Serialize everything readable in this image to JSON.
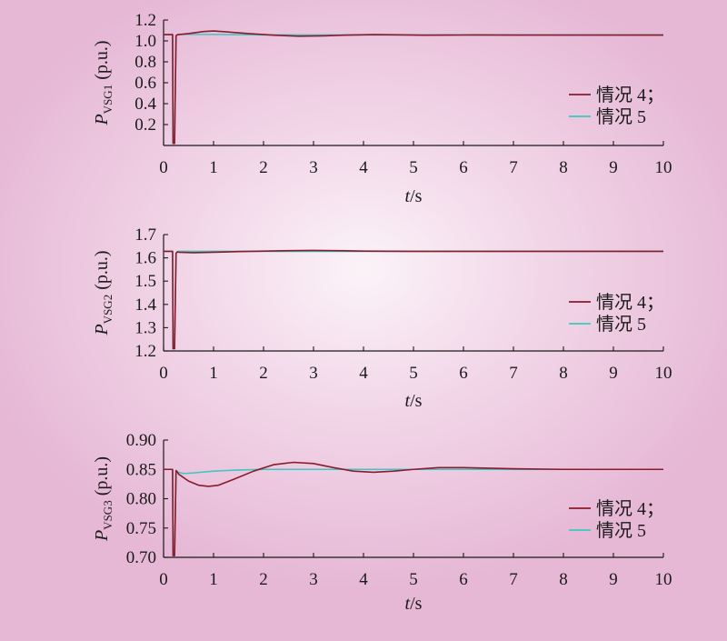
{
  "colors": {
    "case4": "#8b1a2b",
    "case5": "#3cc8c0",
    "axis": "#1a1a1a"
  },
  "chart_data": [
    {
      "type": "line",
      "xlabel": "t/s",
      "ylabel": "P_VSG1 (p.u.)",
      "ylabel_main": "P",
      "ylabel_sub": "VSG1",
      "ylabel_unit": " (p.u.)",
      "xlabel_italic": "t",
      "xlabel_unit": "/s",
      "xlim": [
        0,
        10
      ],
      "ylim": [
        0.0,
        1.2
      ],
      "xticks": [
        0,
        1,
        2,
        3,
        4,
        5,
        6,
        7,
        8,
        9,
        10
      ],
      "yticks": [
        0.2,
        0.4,
        0.6,
        0.8,
        1.0,
        1.2
      ],
      "ytick_labels": [
        "0.2",
        "0.4",
        "0.6",
        "0.8",
        "1.0",
        "1.2"
      ],
      "legend_position": "right",
      "series": [
        {
          "name": "情况 4；",
          "x": [
            0,
            0.18,
            0.19,
            0.22,
            0.25,
            0.28,
            0.3,
            0.5,
            0.8,
            1.0,
            1.3,
            1.7,
            2.2,
            2.7,
            3.2,
            3.7,
            4.2,
            4.7,
            5.2,
            5.7,
            6.2,
            7,
            8,
            9,
            10
          ],
          "y": [
            1.06,
            1.06,
            0.02,
            0.02,
            1.05,
            1.06,
            1.06,
            1.07,
            1.09,
            1.095,
            1.085,
            1.07,
            1.055,
            1.045,
            1.048,
            1.056,
            1.06,
            1.058,
            1.055,
            1.056,
            1.057,
            1.056,
            1.056,
            1.056,
            1.056
          ]
        },
        {
          "name": "情况 5",
          "x": [
            0,
            0.18,
            0.19,
            0.22,
            0.25,
            0.28,
            0.3,
            1,
            2,
            3,
            4,
            5,
            6,
            7,
            8,
            9,
            10
          ],
          "y": [
            1.06,
            1.06,
            0.02,
            0.02,
            1.05,
            1.06,
            1.062,
            1.062,
            1.058,
            1.057,
            1.057,
            1.057,
            1.057,
            1.057,
            1.057,
            1.057,
            1.057
          ]
        }
      ]
    },
    {
      "type": "line",
      "xlabel": "t/s",
      "ylabel": "P_VSG2 (p.u.)",
      "ylabel_main": "P",
      "ylabel_sub": "VSG2",
      "ylabel_unit": " (p.u.)",
      "xlabel_italic": "t",
      "xlabel_unit": "/s",
      "xlim": [
        0,
        10
      ],
      "ylim": [
        1.2,
        1.7
      ],
      "xticks": [
        0,
        1,
        2,
        3,
        4,
        5,
        6,
        7,
        8,
        9,
        10
      ],
      "yticks": [
        1.2,
        1.3,
        1.4,
        1.5,
        1.6,
        1.7
      ],
      "ytick_labels": [
        "1.2",
        "1.3",
        "1.4",
        "1.5",
        "1.6",
        "1.7"
      ],
      "legend_position": "right",
      "series": [
        {
          "name": "情况 4；",
          "x": [
            0,
            0.18,
            0.19,
            0.22,
            0.25,
            0.28,
            0.3,
            0.6,
            1,
            1.5,
            2,
            2.5,
            3,
            3.5,
            4,
            5,
            6,
            7,
            8,
            9,
            10
          ],
          "y": [
            1.628,
            1.628,
            1.21,
            1.21,
            1.62,
            1.626,
            1.624,
            1.622,
            1.624,
            1.627,
            1.629,
            1.631,
            1.632,
            1.631,
            1.629,
            1.628,
            1.628,
            1.628,
            1.628,
            1.628,
            1.628
          ]
        },
        {
          "name": "情况 5",
          "x": [
            0,
            0.18,
            0.19,
            0.22,
            0.25,
            0.28,
            0.3,
            1,
            2,
            3,
            4,
            5,
            6,
            7,
            8,
            9,
            10
          ],
          "y": [
            1.628,
            1.628,
            1.21,
            1.21,
            1.62,
            1.627,
            1.628,
            1.628,
            1.628,
            1.628,
            1.628,
            1.628,
            1.628,
            1.628,
            1.628,
            1.628,
            1.628
          ]
        }
      ]
    },
    {
      "type": "line",
      "xlabel": "t/s",
      "ylabel": "P_VSG3 (p.u.)",
      "ylabel_main": "P",
      "ylabel_sub": "VSG3",
      "ylabel_unit": " (p.u.)",
      "xlabel_italic": "t",
      "xlabel_unit": "/s",
      "xlim": [
        0,
        10
      ],
      "ylim": [
        0.7,
        0.9
      ],
      "xticks": [
        0,
        1,
        2,
        3,
        4,
        5,
        6,
        7,
        8,
        9,
        10
      ],
      "yticks": [
        0.7,
        0.75,
        0.8,
        0.85,
        0.9
      ],
      "ytick_labels": [
        "0.70",
        "0.75",
        "0.80",
        "0.85",
        "0.90"
      ],
      "legend_position": "right",
      "series": [
        {
          "name": "情况 4；",
          "x": [
            0,
            0.18,
            0.19,
            0.22,
            0.25,
            0.28,
            0.3,
            0.5,
            0.7,
            0.9,
            1.1,
            1.4,
            1.8,
            2.2,
            2.6,
            3.0,
            3.4,
            3.8,
            4.2,
            4.6,
            5.0,
            5.5,
            6.0,
            6.5,
            7.0,
            8,
            9,
            10
          ],
          "y": [
            0.85,
            0.85,
            0.703,
            0.703,
            0.848,
            0.845,
            0.842,
            0.83,
            0.823,
            0.821,
            0.823,
            0.833,
            0.847,
            0.858,
            0.862,
            0.86,
            0.853,
            0.847,
            0.845,
            0.847,
            0.85,
            0.853,
            0.853,
            0.852,
            0.851,
            0.85,
            0.85,
            0.85
          ]
        },
        {
          "name": "情况 5",
          "x": [
            0,
            0.18,
            0.19,
            0.22,
            0.25,
            0.28,
            0.3,
            0.4,
            0.6,
            1.0,
            1.5,
            2.0,
            3.0,
            4,
            5,
            6,
            7,
            8,
            9,
            10
          ],
          "y": [
            0.85,
            0.85,
            0.703,
            0.703,
            0.848,
            0.846,
            0.845,
            0.843,
            0.844,
            0.847,
            0.849,
            0.85,
            0.85,
            0.85,
            0.85,
            0.85,
            0.85,
            0.85,
            0.85,
            0.85
          ]
        }
      ]
    }
  ]
}
